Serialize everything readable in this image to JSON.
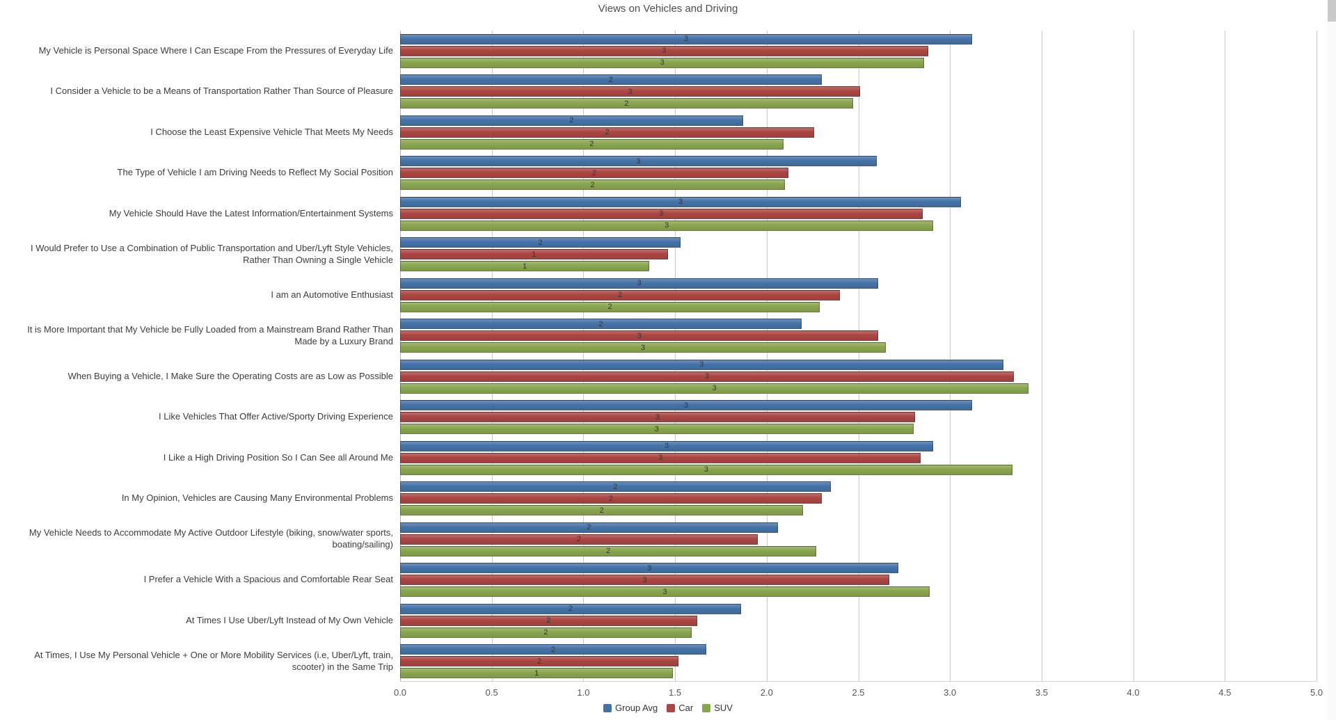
{
  "chart_data": {
    "type": "bar",
    "orientation": "horizontal",
    "title": "Views on Vehicles and Driving",
    "xlabel": "",
    "ylabel": "",
    "xlim": [
      0,
      5
    ],
    "xticks": [
      "0.0",
      "0.5",
      "1.0",
      "1.5",
      "2.0",
      "2.5",
      "3.0",
      "3.5",
      "4.0",
      "4.5",
      "5.0"
    ],
    "grid": true,
    "legend_position": "bottom",
    "value_label_rule": "rounded integer shown at center of each bar",
    "categories": [
      "My Vehicle is Personal Space Where I Can Escape From the Pressures of Everyday Life",
      "I Consider a Vehicle to be a Means of Transportation Rather Than Source of Pleasure",
      "I Choose the Least Expensive Vehicle That Meets My Needs",
      "The Type of Vehicle I am Driving Needs to Reflect My Social Position",
      "My Vehicle Should Have the Latest Information/Entertainment Systems",
      "I Would Prefer to Use a Combination of Public Transportation and Uber/Lyft Style Vehicles, Rather Than Owning a Single Vehicle",
      "I am an Automotive Enthusiast",
      "It is More Important that My Vehicle be Fully Loaded from a Mainstream Brand Rather Than Made by a Luxury Brand",
      "When Buying a Vehicle, I Make Sure the Operating Costs are as Low as Possible",
      "I Like Vehicles That Offer Active/Sporty Driving Experience",
      "I Like a High Driving Position So I Can See all Around Me",
      "In My Opinion, Vehicles are Causing Many Environmental Problems",
      "My Vehicle Needs to Accommodate My Active Outdoor Lifestyle (biking, snow/water sports, boating/sailing)",
      "I Prefer a Vehicle With a Spacious and Comfortable Rear Seat",
      "At Times I Use Uber/Lyft Instead of My Own Vehicle",
      "At Times, I Use My Personal Vehicle + One or More Mobility Services (i.e, Uber/Lyft, train, scooter) in the Same Trip"
    ],
    "series": [
      {
        "name": "Group Avg",
        "key": "group-avg",
        "color": "#4572A7",
        "values": [
          3.12,
          2.3,
          1.87,
          2.6,
          3.06,
          1.53,
          2.61,
          2.19,
          3.29,
          3.12,
          2.91,
          2.35,
          2.06,
          2.72,
          1.86,
          1.67
        ],
        "bar_labels": [
          3,
          2,
          2,
          3,
          3,
          2,
          3,
          2,
          3,
          3,
          3,
          2,
          2,
          3,
          2,
          2
        ]
      },
      {
        "name": "Car",
        "key": "car",
        "color": "#AA4643",
        "values": [
          2.88,
          2.51,
          2.26,
          2.12,
          2.85,
          1.46,
          2.4,
          2.61,
          3.35,
          2.81,
          2.84,
          2.3,
          1.95,
          2.67,
          1.62,
          1.52
        ],
        "bar_labels": [
          3,
          3,
          2,
          2,
          3,
          1,
          2,
          3,
          3,
          3,
          3,
          2,
          2,
          3,
          2,
          2
        ]
      },
      {
        "name": "SUV",
        "key": "suv",
        "color": "#89A54E",
        "values": [
          2.86,
          2.47,
          2.09,
          2.1,
          2.91,
          1.36,
          2.29,
          2.65,
          3.43,
          2.8,
          3.34,
          2.2,
          2.27,
          2.89,
          1.59,
          1.49
        ],
        "bar_labels": [
          3,
          2,
          2,
          2,
          3,
          1,
          2,
          3,
          3,
          3,
          3,
          2,
          2,
          3,
          2,
          1
        ]
      }
    ]
  }
}
